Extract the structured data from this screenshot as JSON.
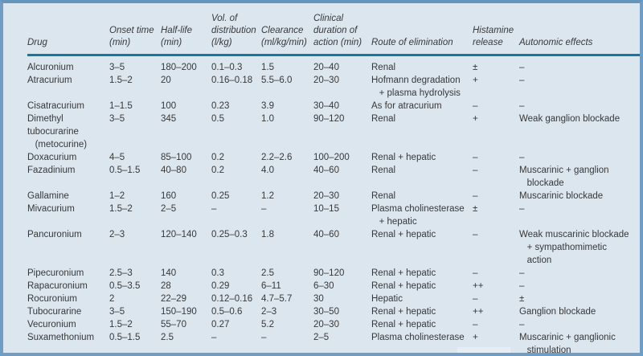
{
  "colors": {
    "frame_border": "#6f9dc3",
    "background": "#dce6ef",
    "header_rule": "#1478a0",
    "text": "#383838"
  },
  "table": {
    "columns": [
      {
        "key": "drug",
        "label": "Drug"
      },
      {
        "key": "onset",
        "label": "Onset time\n(min)"
      },
      {
        "key": "half_life",
        "label": "Half-life\n(min)"
      },
      {
        "key": "vod",
        "label": "Vol. of\ndistribution\n(l/kg)"
      },
      {
        "key": "clearance",
        "label": "Clearance\n(ml/kg/min)"
      },
      {
        "key": "duration",
        "label": "Clinical\nduration of\naction (min)"
      },
      {
        "key": "route",
        "label": "Route of elimination"
      },
      {
        "key": "histamine",
        "label": "Histamine\nrelease"
      },
      {
        "key": "autonomic",
        "label": "Autonomic effects"
      }
    ],
    "rows": [
      [
        "Alcuronium",
        "3–5",
        "180–200",
        "0.1–0.3",
        "1.5",
        "20–40",
        "Renal",
        "±",
        "–"
      ],
      [
        "Atracurium",
        "1.5–2",
        "20",
        "0.16–0.18",
        "5.5–6.0",
        "20–30",
        "Hofmann degradation\n   + plasma hydrolysis",
        "+",
        "–"
      ],
      [
        "Cisatracurium",
        "1–1.5",
        "100",
        "0.23",
        "3.9",
        "30–40",
        "As for atracurium",
        "–",
        "–"
      ],
      [
        "Dimethyl tubocurarine\n   (metocurine)",
        "3–5",
        "345",
        "0.5",
        "1.0",
        "90–120",
        "Renal",
        "+",
        "Weak ganglion blockade"
      ],
      [
        "Doxacurium",
        "4–5",
        "85–100",
        "0.2",
        "2.2–2.6",
        "100–200",
        "Renal + hepatic",
        "–",
        "–"
      ],
      [
        "Fazadinium",
        "0.5–1.5",
        "40–80",
        "0.2",
        "4.0",
        "40–60",
        "Renal",
        "–",
        "Muscarinic + ganglion\n   blockade"
      ],
      [
        "Gallamine",
        "1–2",
        "160",
        "0.25",
        "1.2",
        "20–30",
        "Renal",
        "–",
        "Muscarinic blockade"
      ],
      [
        "Mivacurium",
        "1.5–2",
        "2–5",
        "–",
        "–",
        "10–15",
        "Plasma cholinesterase\n   + hepatic",
        "±",
        "–"
      ],
      [
        "Pancuronium",
        "2–3",
        "120–140",
        "0.25–0.3",
        "1.8",
        "40–60",
        "Renal + hepatic",
        "–",
        "Weak muscarinic blockade\n   + sympathomimetic\n   action"
      ],
      [
        "Pipecuronium",
        "2.5–3",
        "140",
        "0.3",
        "2.5",
        "90–120",
        "Renal + hepatic",
        "–",
        "–"
      ],
      [
        "Rapacuronium",
        "0.5–3.5",
        "28",
        "0.29",
        "6–11",
        "6–30",
        "Renal + hepatic",
        "++",
        "–"
      ],
      [
        "Rocuronium",
        "2",
        "22–29",
        "0.12–0.16",
        "4.7–5.7",
        "30",
        "Hepatic",
        "–",
        "±"
      ],
      [
        "Tubocurarine",
        "3–5",
        "150–190",
        "0.5–0.6",
        "2–3",
        "30–50",
        "Renal + hepatic",
        "++",
        "Ganglion blockade"
      ],
      [
        "Vecuronium",
        "1.5–2",
        "55–70",
        "0.27",
        "5.2",
        "20–30",
        "Renal + hepatic",
        "–",
        "–"
      ],
      [
        "Suxamethonium",
        "0.5–1.5",
        "2.5",
        "–",
        "–",
        "2–5",
        "Plasma cholinesterase",
        "+",
        "Muscarinic + ganglionic\n   stimulation"
      ]
    ]
  }
}
